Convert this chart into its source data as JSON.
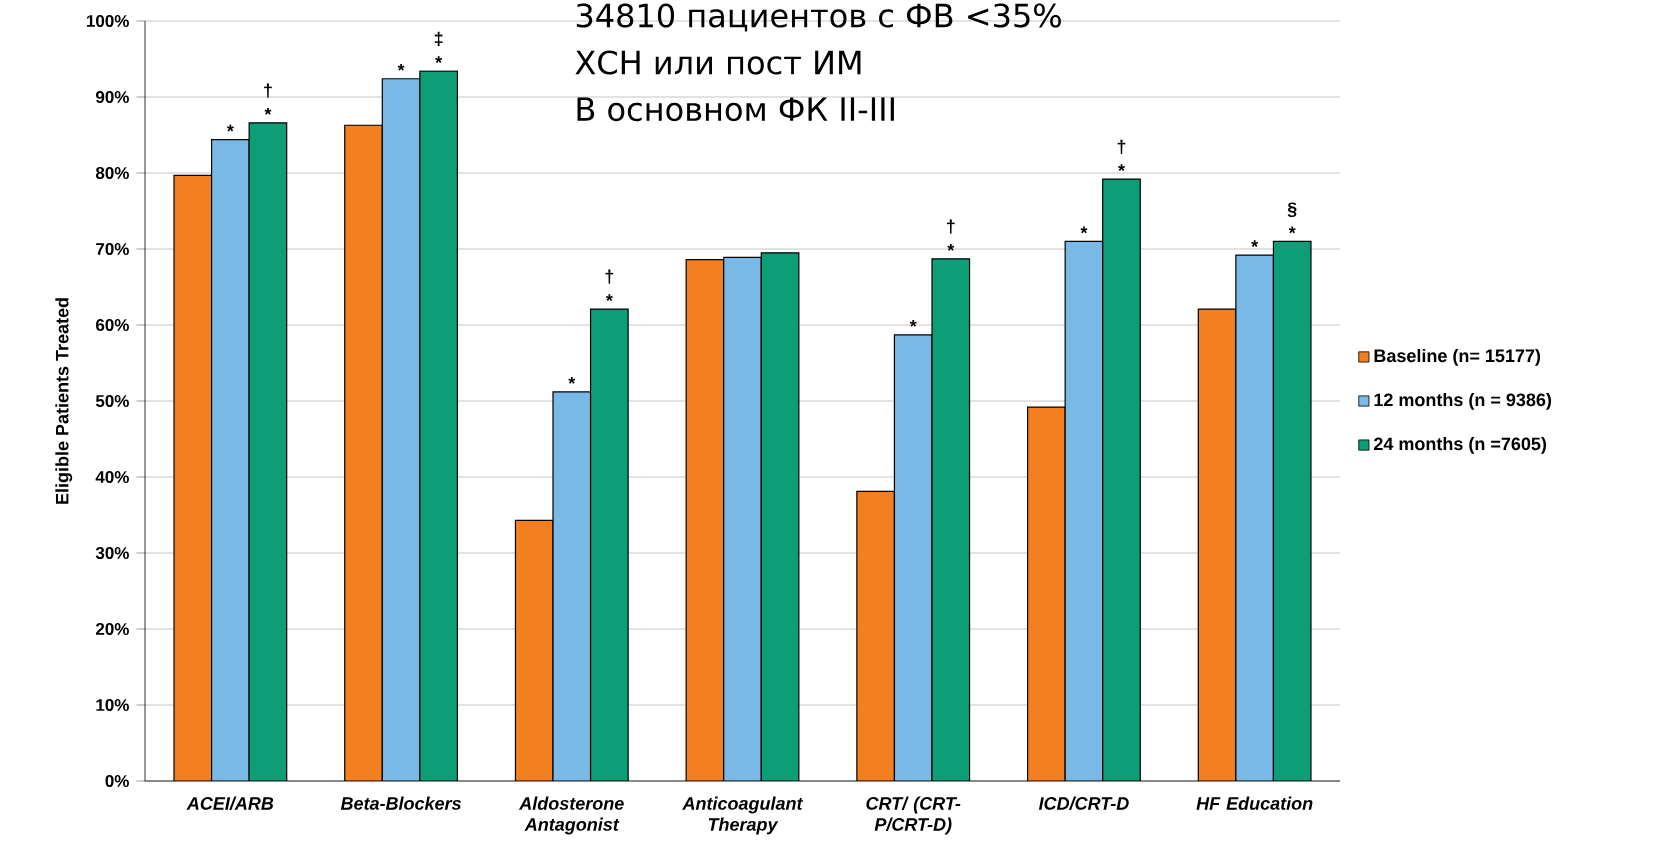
{
  "chart_data": {
    "type": "bar",
    "categories": [
      "ACEI/ARB",
      "Beta-Blockers",
      "Aldosterone Antagonist",
      "Anticoagulant Therapy",
      "CRT/ (CRT-P/CRT-D)",
      "ICD/CRT-D",
      "HF Education"
    ],
    "series": [
      {
        "name": "Baseline (n= 15177)",
        "color": "#f47f20",
        "values": [
          79.7,
          86.3,
          34.3,
          68.6,
          38.1,
          49.2,
          62.1
        ],
        "value_labels": [
          null,
          null,
          null,
          null,
          null,
          null,
          null
        ]
      },
      {
        "name": "12 months (n = 9386)",
        "color": "#79b9e6",
        "values": [
          84.4,
          92.4,
          51.2,
          68.9,
          58.7,
          71.0,
          69.2
        ],
        "value_labels": [
          "*",
          "*",
          "*",
          null,
          "*",
          "*",
          "*"
        ]
      },
      {
        "name": "24 months (n =7605)",
        "color": "#0e9e77",
        "values": [
          86.6,
          93.4,
          62.1,
          69.5,
          68.7,
          79.2,
          71.0
        ],
        "value_labels": [
          "† *",
          "‡ *",
          "† *",
          null,
          "† *",
          "† *",
          "§ *"
        ]
      }
    ],
    "ylim": [
      0,
      100
    ],
    "yticks": [
      {
        "value": 0,
        "label": "0%"
      },
      {
        "value": 10,
        "label": "10%"
      },
      {
        "value": 20,
        "label": "20%"
      },
      {
        "value": 30,
        "label": "30%"
      },
      {
        "value": 40,
        "label": "40%"
      },
      {
        "value": 50,
        "label": "50%"
      },
      {
        "value": 60,
        "label": "60%"
      },
      {
        "value": 70,
        "label": "70%"
      },
      {
        "value": 80,
        "label": "80%"
      },
      {
        "value": 90,
        "label": "90%"
      },
      {
        "value": 100,
        "label": "100%"
      }
    ],
    "ylabel": "Eligible Patients Treated",
    "annotations": [
      "34810 пациентов с ФВ <35%",
      "ХСН или пост ИМ",
      "В основном ФК II-III"
    ],
    "grid": "y",
    "legend": "right"
  }
}
